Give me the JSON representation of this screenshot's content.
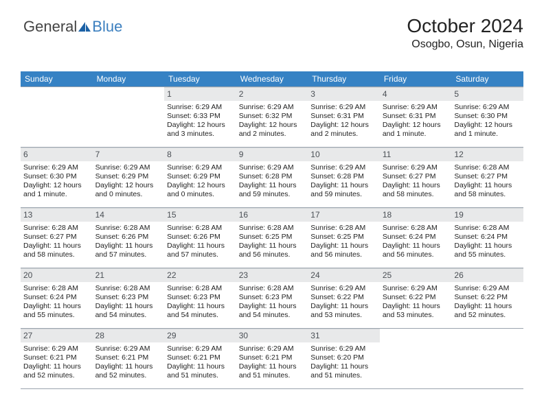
{
  "logo": {
    "text_general": "General",
    "text_blue": "Blue",
    "triangle_color": "#1b61a6"
  },
  "header": {
    "title": "October 2024",
    "location": "Osogbo, Osun, Nigeria"
  },
  "colors": {
    "header_bg": "#3682c4",
    "header_text": "#ffffff",
    "date_bar_bg": "#e8e9ea",
    "rule": "#9aa3ad"
  },
  "weekdays": [
    "Sunday",
    "Monday",
    "Tuesday",
    "Wednesday",
    "Thursday",
    "Friday",
    "Saturday"
  ],
  "weeks": [
    [
      null,
      null,
      {
        "date": "1",
        "sunrise": "Sunrise: 6:29 AM",
        "sunset": "Sunset: 6:33 PM",
        "daylight": "Daylight: 12 hours and 3 minutes."
      },
      {
        "date": "2",
        "sunrise": "Sunrise: 6:29 AM",
        "sunset": "Sunset: 6:32 PM",
        "daylight": "Daylight: 12 hours and 2 minutes."
      },
      {
        "date": "3",
        "sunrise": "Sunrise: 6:29 AM",
        "sunset": "Sunset: 6:31 PM",
        "daylight": "Daylight: 12 hours and 2 minutes."
      },
      {
        "date": "4",
        "sunrise": "Sunrise: 6:29 AM",
        "sunset": "Sunset: 6:31 PM",
        "daylight": "Daylight: 12 hours and 1 minute."
      },
      {
        "date": "5",
        "sunrise": "Sunrise: 6:29 AM",
        "sunset": "Sunset: 6:30 PM",
        "daylight": "Daylight: 12 hours and 1 minute."
      }
    ],
    [
      {
        "date": "6",
        "sunrise": "Sunrise: 6:29 AM",
        "sunset": "Sunset: 6:30 PM",
        "daylight": "Daylight: 12 hours and 1 minute."
      },
      {
        "date": "7",
        "sunrise": "Sunrise: 6:29 AM",
        "sunset": "Sunset: 6:29 PM",
        "daylight": "Daylight: 12 hours and 0 minutes."
      },
      {
        "date": "8",
        "sunrise": "Sunrise: 6:29 AM",
        "sunset": "Sunset: 6:29 PM",
        "daylight": "Daylight: 12 hours and 0 minutes."
      },
      {
        "date": "9",
        "sunrise": "Sunrise: 6:29 AM",
        "sunset": "Sunset: 6:28 PM",
        "daylight": "Daylight: 11 hours and 59 minutes."
      },
      {
        "date": "10",
        "sunrise": "Sunrise: 6:29 AM",
        "sunset": "Sunset: 6:28 PM",
        "daylight": "Daylight: 11 hours and 59 minutes."
      },
      {
        "date": "11",
        "sunrise": "Sunrise: 6:29 AM",
        "sunset": "Sunset: 6:27 PM",
        "daylight": "Daylight: 11 hours and 58 minutes."
      },
      {
        "date": "12",
        "sunrise": "Sunrise: 6:28 AM",
        "sunset": "Sunset: 6:27 PM",
        "daylight": "Daylight: 11 hours and 58 minutes."
      }
    ],
    [
      {
        "date": "13",
        "sunrise": "Sunrise: 6:28 AM",
        "sunset": "Sunset: 6:27 PM",
        "daylight": "Daylight: 11 hours and 58 minutes."
      },
      {
        "date": "14",
        "sunrise": "Sunrise: 6:28 AM",
        "sunset": "Sunset: 6:26 PM",
        "daylight": "Daylight: 11 hours and 57 minutes."
      },
      {
        "date": "15",
        "sunrise": "Sunrise: 6:28 AM",
        "sunset": "Sunset: 6:26 PM",
        "daylight": "Daylight: 11 hours and 57 minutes."
      },
      {
        "date": "16",
        "sunrise": "Sunrise: 6:28 AM",
        "sunset": "Sunset: 6:25 PM",
        "daylight": "Daylight: 11 hours and 56 minutes."
      },
      {
        "date": "17",
        "sunrise": "Sunrise: 6:28 AM",
        "sunset": "Sunset: 6:25 PM",
        "daylight": "Daylight: 11 hours and 56 minutes."
      },
      {
        "date": "18",
        "sunrise": "Sunrise: 6:28 AM",
        "sunset": "Sunset: 6:24 PM",
        "daylight": "Daylight: 11 hours and 56 minutes."
      },
      {
        "date": "19",
        "sunrise": "Sunrise: 6:28 AM",
        "sunset": "Sunset: 6:24 PM",
        "daylight": "Daylight: 11 hours and 55 minutes."
      }
    ],
    [
      {
        "date": "20",
        "sunrise": "Sunrise: 6:28 AM",
        "sunset": "Sunset: 6:24 PM",
        "daylight": "Daylight: 11 hours and 55 minutes."
      },
      {
        "date": "21",
        "sunrise": "Sunrise: 6:28 AM",
        "sunset": "Sunset: 6:23 PM",
        "daylight": "Daylight: 11 hours and 54 minutes."
      },
      {
        "date": "22",
        "sunrise": "Sunrise: 6:28 AM",
        "sunset": "Sunset: 6:23 PM",
        "daylight": "Daylight: 11 hours and 54 minutes."
      },
      {
        "date": "23",
        "sunrise": "Sunrise: 6:28 AM",
        "sunset": "Sunset: 6:23 PM",
        "daylight": "Daylight: 11 hours and 54 minutes."
      },
      {
        "date": "24",
        "sunrise": "Sunrise: 6:29 AM",
        "sunset": "Sunset: 6:22 PM",
        "daylight": "Daylight: 11 hours and 53 minutes."
      },
      {
        "date": "25",
        "sunrise": "Sunrise: 6:29 AM",
        "sunset": "Sunset: 6:22 PM",
        "daylight": "Daylight: 11 hours and 53 minutes."
      },
      {
        "date": "26",
        "sunrise": "Sunrise: 6:29 AM",
        "sunset": "Sunset: 6:22 PM",
        "daylight": "Daylight: 11 hours and 52 minutes."
      }
    ],
    [
      {
        "date": "27",
        "sunrise": "Sunrise: 6:29 AM",
        "sunset": "Sunset: 6:21 PM",
        "daylight": "Daylight: 11 hours and 52 minutes."
      },
      {
        "date": "28",
        "sunrise": "Sunrise: 6:29 AM",
        "sunset": "Sunset: 6:21 PM",
        "daylight": "Daylight: 11 hours and 52 minutes."
      },
      {
        "date": "29",
        "sunrise": "Sunrise: 6:29 AM",
        "sunset": "Sunset: 6:21 PM",
        "daylight": "Daylight: 11 hours and 51 minutes."
      },
      {
        "date": "30",
        "sunrise": "Sunrise: 6:29 AM",
        "sunset": "Sunset: 6:21 PM",
        "daylight": "Daylight: 11 hours and 51 minutes."
      },
      {
        "date": "31",
        "sunrise": "Sunrise: 6:29 AM",
        "sunset": "Sunset: 6:20 PM",
        "daylight": "Daylight: 11 hours and 51 minutes."
      },
      null,
      null
    ]
  ]
}
